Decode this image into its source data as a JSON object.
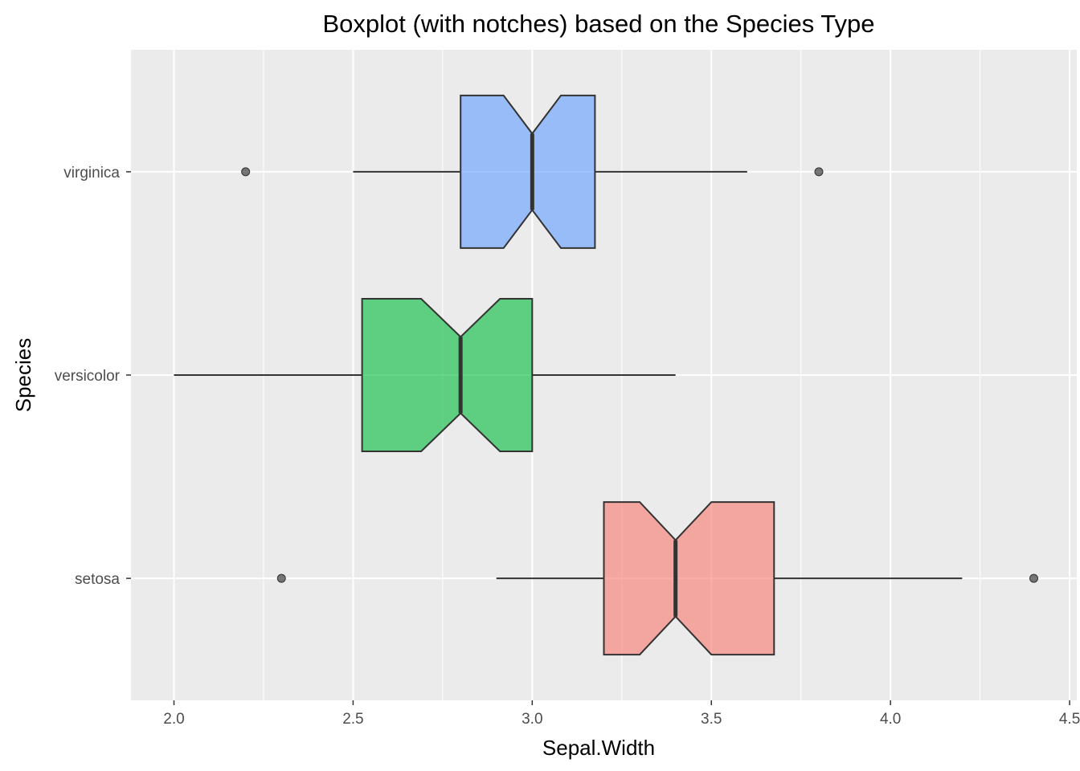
{
  "chart_data": {
    "type": "boxplot",
    "orientation": "horizontal",
    "notched": true,
    "title": "Boxplot (with notches) based on the Species Type",
    "xlabel": "Sepal.Width",
    "ylabel": "Species",
    "xlim": [
      1.88,
      4.52
    ],
    "xticks": [
      "2.0",
      "2.5",
      "3.0",
      "3.5",
      "4.0",
      "4.5"
    ],
    "grid": true,
    "legend": "none",
    "categories": [
      "setosa",
      "versicolor",
      "virginica"
    ],
    "boxes": [
      {
        "category": "setosa",
        "whisker_low": 2.9,
        "q1": 3.2,
        "median": 3.4,
        "q3": 3.675,
        "whisker_high": 4.2,
        "notch_low": 3.3,
        "notch_high": 3.5,
        "outliers": [
          2.3,
          4.4
        ],
        "fill": "#F8766D"
      },
      {
        "category": "versicolor",
        "whisker_low": 2.0,
        "q1": 2.525,
        "median": 2.8,
        "q3": 3.0,
        "whisker_high": 3.4,
        "notch_low": 2.69,
        "notch_high": 2.91,
        "outliers": [],
        "fill": "#00BA38"
      },
      {
        "category": "virginica",
        "whisker_low": 2.5,
        "q1": 2.8,
        "median": 3.0,
        "q3": 3.175,
        "whisker_high": 3.6,
        "notch_low": 2.92,
        "notch_high": 3.08,
        "outliers": [
          2.2,
          3.8
        ],
        "fill": "#619CFF"
      }
    ]
  }
}
